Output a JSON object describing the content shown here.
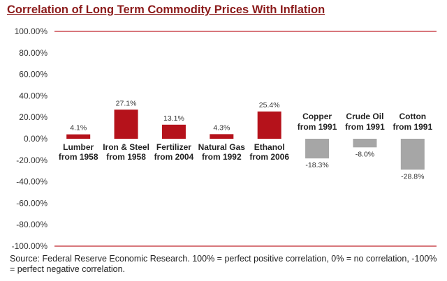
{
  "title": "Correlation of Long Term Commodity Prices With Inflation",
  "source": "Source: Federal Reserve Economic Research. 100% = perfect positive correlation, 0% = no correlation, -100% = perfect negative correlation.",
  "colors": {
    "positive": "#b5121b",
    "negative": "#a6a6a6",
    "boundary_line": "#c0262d",
    "title": "#8b1a1a"
  },
  "chart_data": {
    "type": "bar",
    "title": "Correlation of Long Term Commodity Prices With Inflation",
    "xlabel": "",
    "ylabel": "",
    "ylim": [
      -100,
      100
    ],
    "yticks": [
      "100.00%",
      "80.00%",
      "60.00%",
      "40.00%",
      "20.00%",
      "0.00%",
      "-20.00%",
      "-40.00%",
      "-60.00%",
      "-80.00%",
      "-100.00%"
    ],
    "grid": false,
    "categories": [
      [
        "Lumber",
        "from 1958"
      ],
      [
        "Iron & Steel",
        "from 1958"
      ],
      [
        "Fertilizer",
        "from 2004"
      ],
      [
        "Natural Gas",
        "from 1992"
      ],
      [
        "Ethanol",
        "from 2006"
      ],
      [
        "Copper",
        "from 1991"
      ],
      [
        "Crude Oil",
        "from 1991"
      ],
      [
        "Cotton",
        "from 1991"
      ]
    ],
    "values": [
      4.1,
      27.1,
      13.1,
      4.3,
      25.4,
      -18.3,
      -8.0,
      -28.8
    ],
    "labels": [
      "4.1%",
      "27.1%",
      "13.1%",
      "4.3%",
      "25.4%",
      "-18.3%",
      "-8.0%",
      "-28.8%"
    ]
  }
}
